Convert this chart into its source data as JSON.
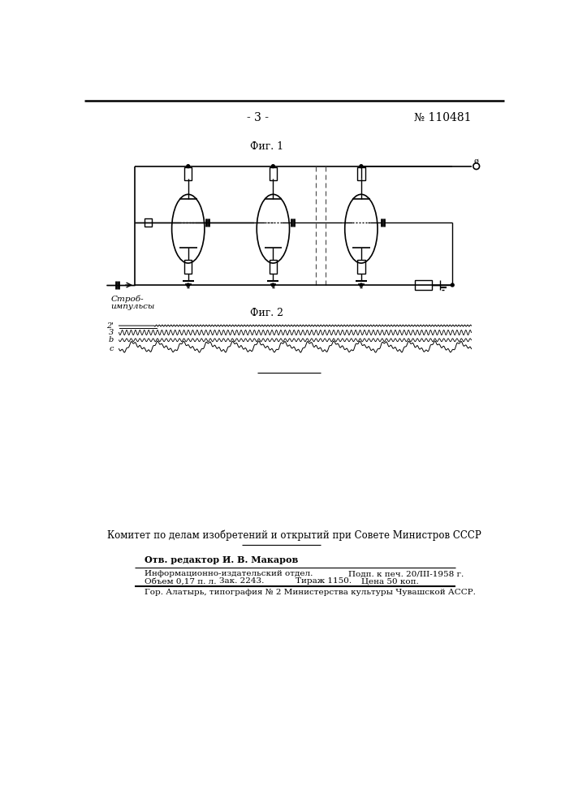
{
  "page_number": "- 3 -",
  "patent_number": "№ 110481",
  "fig1_label": "Фиг. 1",
  "fig2_label": "Фиг. 2",
  "footer_main": "Комитет по делам изобретений и открытий при Совете Министров СССР",
  "footer_editor": "Отв. редактор И. В. Макаров",
  "footer_line1_left": "Информационно-издательский отдел.",
  "footer_line1_right": "Подп. к печ. 20/III-1958 г.",
  "footer_line2_col1": "Объем 0,17 п. л.",
  "footer_line2_col2": "Зак. 2243.",
  "footer_line2_col3": "Тираж 1150.",
  "footer_line2_col4": "Цена 50 коп.",
  "footer_line3": "Гор. Алатырь, типография № 2 Министерства культуры Чувашской АССР.",
  "strob_label_1": "Строб-",
  "strob_label_2": "импульсы",
  "waveform_labels": [
    "2'",
    "3",
    "b",
    "c"
  ],
  "bg_color": "#ffffff"
}
